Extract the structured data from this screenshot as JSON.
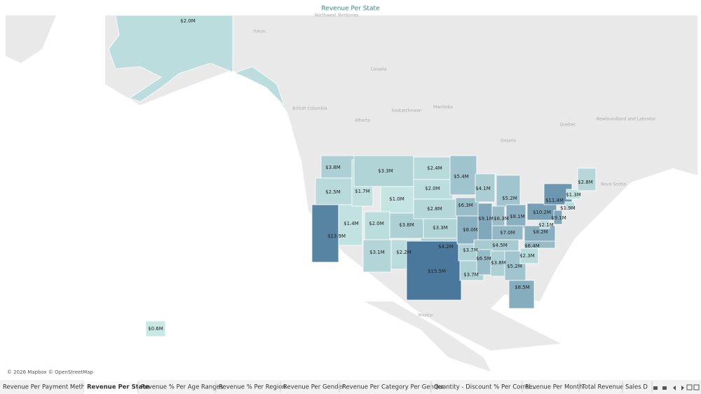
{
  "map": {
    "title": "Revenue Per State",
    "places": [
      "Canada",
      "Yukon",
      "Northwest Territories",
      "British Columbia",
      "Alberta",
      "Saskatchewan",
      "Manitoba",
      "Ontario",
      "Quebec",
      "Newfoundland and Labrador",
      "Nova Scotia",
      "Mexico"
    ],
    "regions": [
      {
        "value": 2000000,
        "label": "$2.0M"
      },
      {
        "value": 3800000,
        "label": "$3.8M"
      },
      {
        "value": 2500000,
        "label": "$2.5M"
      },
      {
        "value": 13900000,
        "label": "$13.9M"
      },
      {
        "value": 1400000,
        "label": "$1.4M"
      },
      {
        "value": 1700000,
        "label": "$1.7M"
      },
      {
        "value": 3300000,
        "label": "$3.3M"
      },
      {
        "value": 1000000,
        "label": "$1.0M"
      },
      {
        "value": 2000000,
        "label": "$2.0M"
      },
      {
        "value": 3100000,
        "label": "$3.1M"
      },
      {
        "value": 2200000,
        "label": "$2.2M"
      },
      {
        "value": 3800000,
        "label": "$3.8M"
      },
      {
        "value": 2400000,
        "label": "$2.4M"
      },
      {
        "value": 2000000,
        "label": "$2.0M"
      },
      {
        "value": 2800000,
        "label": "$2.8M"
      },
      {
        "value": 3300000,
        "label": "$3.3M"
      },
      {
        "value": 4200000,
        "label": "$4.2M"
      },
      {
        "value": 15500000,
        "label": "$15.5M"
      },
      {
        "value": 5400000,
        "label": "$5.4M"
      },
      {
        "value": 6300000,
        "label": "$6.3M"
      },
      {
        "value": 8000000,
        "label": "$8.0M"
      },
      {
        "value": 3700000,
        "label": "$3.7M"
      },
      {
        "value": 3700000,
        "label": "$3.7M"
      },
      {
        "value": 4100000,
        "label": "$4.1M"
      },
      {
        "value": 9100000,
        "label": "$9.1M"
      },
      {
        "value": 5200000,
        "label": "$5.2M"
      },
      {
        "value": 6300000,
        "label": "$6.3M"
      },
      {
        "value": 8100000,
        "label": "$8.1M"
      },
      {
        "value": 7000000,
        "label": "$7.0M"
      },
      {
        "value": 4500000,
        "label": "$4.5M"
      },
      {
        "value": 6500000,
        "label": "$6.5M"
      },
      {
        "value": 3800000,
        "label": "$3.8M"
      },
      {
        "value": 5200000,
        "label": "$5.2M"
      },
      {
        "value": 8500000,
        "label": "$8.5M"
      },
      {
        "value": 2300000,
        "label": "$2.3M"
      },
      {
        "value": 6400000,
        "label": "$6.4M"
      },
      {
        "value": 8200000,
        "label": "$8.2M"
      },
      {
        "value": 2100000,
        "label": "$2.1M"
      },
      {
        "value": 10200000,
        "label": "$10.2M"
      },
      {
        "value": 9100000,
        "label": "$9.1M"
      },
      {
        "value": 11400000,
        "label": "$11.4M"
      },
      {
        "value": 1900000,
        "label": "$1.9M"
      },
      {
        "value": 1300000,
        "label": "$1.3M"
      },
      {
        "value": 2800000,
        "label": "$2.8M"
      },
      {
        "value": 600000,
        "label": "$0.6M"
      }
    ],
    "attribution": "© 2026 Mapbox © OpenStreetMap",
    "tabs": [
      "Revenue Per Payment Method",
      "Revenue Per State",
      "Revenue % Per Age Ranges",
      "Revenue % Per Region",
      "Revenue Per Gender",
      "Revenue Per Category Per Gender",
      "Quantity - Discount % Per Correl...",
      "Revenue Per Month",
      "Total Revenue",
      "Sales D"
    ],
    "active_tab": 1
  }
}
